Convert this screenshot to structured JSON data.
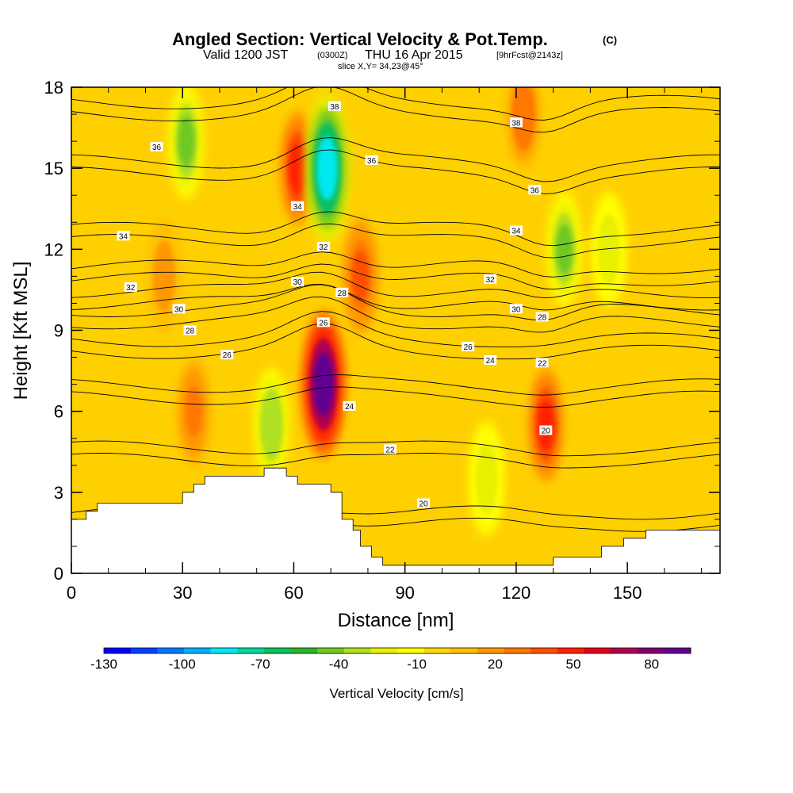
{
  "header": {
    "title": "Angled Section: Vertical Velocity & Pot.Temp.",
    "title_unit": "(C)",
    "valid_prefix": "Valid 1200 JST",
    "valid_utc": "(0300Z)",
    "valid_date": "THU 16 Apr 2015",
    "forecast_info": "[9hrFcst@2143z]",
    "slice_info": "slice X,Y= 34,23@45°"
  },
  "chart_data": {
    "type": "heatmap",
    "xlabel": "Distance [nm]",
    "ylabel": "Height [Kft MSL]",
    "xlim": [
      0,
      175
    ],
    "ylim": [
      0,
      18
    ],
    "x_ticks": [
      0,
      30,
      60,
      90,
      120,
      150
    ],
    "x_tick_labels": [
      "0",
      "30",
      "60",
      "90",
      "120",
      "150"
    ],
    "y_ticks": [
      0,
      3,
      6,
      9,
      12,
      15,
      18
    ],
    "y_tick_labels": [
      "0",
      "3",
      "6",
      "9",
      "12",
      "15",
      "18"
    ],
    "field": "Vertical Velocity",
    "field_units": "cm/s",
    "colorbar": {
      "title": "Vertical Velocity [cm/s]",
      "range": [
        -130,
        95
      ],
      "tick_values": [
        -130,
        -100,
        -70,
        -40,
        -10,
        20,
        50,
        80
      ],
      "tick_labels": [
        "-130",
        "-100",
        "-70",
        "-40",
        "-10",
        "20",
        "50",
        "80"
      ],
      "colors": [
        "#0000ff",
        "#0040ff",
        "#0078ff",
        "#00b0ff",
        "#00e8f0",
        "#00d8a0",
        "#10c060",
        "#30b030",
        "#70c820",
        "#b0e020",
        "#e8f000",
        "#ffff00",
        "#ffd800",
        "#ffc000",
        "#ff9800",
        "#ff7800",
        "#ff5000",
        "#ff2000",
        "#e00020",
        "#b00050",
        "#800070",
        "#600090"
      ]
    },
    "features": [
      {
        "type": "updraft",
        "x": 68,
        "y": 7,
        "w_cm_s": 95
      },
      {
        "type": "updraft",
        "x": 61,
        "y": 15,
        "w_cm_s": 50
      },
      {
        "type": "updraft",
        "x": 78,
        "y": 11,
        "w_cm_s": 40
      },
      {
        "type": "updraft",
        "x": 128,
        "y": 5.5,
        "w_cm_s": 45
      },
      {
        "type": "updraft",
        "x": 25,
        "y": 11,
        "w_cm_s": 20
      },
      {
        "type": "updraft",
        "x": 33,
        "y": 6,
        "w_cm_s": 25
      },
      {
        "type": "updraft",
        "x": 122,
        "y": 17,
        "w_cm_s": 30
      },
      {
        "type": "downdraft",
        "x": 69,
        "y": 15,
        "w_cm_s": -85
      },
      {
        "type": "downdraft",
        "x": 31,
        "y": 16,
        "w_cm_s": -40
      },
      {
        "type": "downdraft",
        "x": 133,
        "y": 12,
        "w_cm_s": -45
      },
      {
        "type": "downdraft",
        "x": 54,
        "y": 5.5,
        "w_cm_s": -35
      },
      {
        "type": "downdraft",
        "x": 112,
        "y": 3.5,
        "w_cm_s": -25
      },
      {
        "type": "downdraft",
        "x": 145,
        "y": 12,
        "w_cm_s": -25
      }
    ],
    "terrain": {
      "x": [
        0,
        4,
        4,
        7,
        7,
        10,
        10,
        30,
        30,
        33,
        33,
        36,
        36,
        52,
        52,
        58,
        58,
        61,
        61,
        70,
        70,
        73,
        73,
        76,
        76,
        78,
        78,
        81,
        81,
        84,
        84,
        88,
        88,
        92,
        92,
        100,
        100,
        116,
        116,
        130,
        130,
        143,
        143,
        149,
        149,
        155,
        155,
        160,
        160,
        175
      ],
      "y": [
        2.0,
        2.0,
        2.3,
        2.3,
        2.6,
        2.6,
        2.6,
        2.6,
        3.0,
        3.0,
        3.3,
        3.3,
        3.6,
        3.6,
        3.9,
        3.9,
        3.6,
        3.6,
        3.3,
        3.3,
        3.0,
        3.0,
        2.0,
        2.0,
        1.6,
        1.6,
        1.0,
        1.0,
        0.6,
        0.6,
        0.3,
        0.3,
        0.3,
        0.3,
        0.3,
        0.3,
        0.3,
        0.3,
        0.3,
        0.3,
        0.6,
        0.6,
        1.0,
        1.0,
        1.3,
        1.3,
        1.6,
        1.6,
        1.6,
        1.6
      ]
    },
    "contour_labels": [
      {
        "text": "38",
        "x": 71,
        "y": 17.3
      },
      {
        "text": "38",
        "x": 120,
        "y": 16.7
      },
      {
        "text": "36",
        "x": 23,
        "y": 15.8
      },
      {
        "text": "36",
        "x": 81,
        "y": 15.3
      },
      {
        "text": "36",
        "x": 125,
        "y": 14.2
      },
      {
        "text": "34",
        "x": 61,
        "y": 13.6
      },
      {
        "text": "34",
        "x": 14,
        "y": 12.5
      },
      {
        "text": "34",
        "x": 120,
        "y": 12.7
      },
      {
        "text": "32",
        "x": 68,
        "y": 12.1
      },
      {
        "text": "32",
        "x": 16,
        "y": 10.6
      },
      {
        "text": "32",
        "x": 113,
        "y": 10.9
      },
      {
        "text": "30",
        "x": 61,
        "y": 10.8
      },
      {
        "text": "30",
        "x": 29,
        "y": 9.8
      },
      {
        "text": "30",
        "x": 120,
        "y": 9.8
      },
      {
        "text": "28",
        "x": 73,
        "y": 10.4
      },
      {
        "text": "28",
        "x": 32,
        "y": 9.0
      },
      {
        "text": "28",
        "x": 127,
        "y": 9.5
      },
      {
        "text": "26",
        "x": 68,
        "y": 9.3
      },
      {
        "text": "26",
        "x": 42,
        "y": 8.1
      },
      {
        "text": "26",
        "x": 107,
        "y": 8.4
      },
      {
        "text": "24",
        "x": 75,
        "y": 6.2
      },
      {
        "text": "24",
        "x": 113,
        "y": 7.9
      },
      {
        "text": "22",
        "x": 127,
        "y": 7.8
      },
      {
        "text": "22",
        "x": 86,
        "y": 4.6
      },
      {
        "text": "20",
        "x": 128,
        "y": 5.3
      },
      {
        "text": "20",
        "x": 95,
        "y": 2.6
      }
    ]
  }
}
